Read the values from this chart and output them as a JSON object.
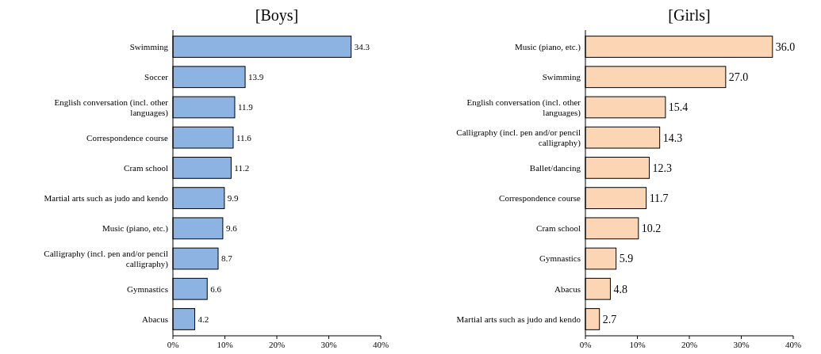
{
  "chart_data": [
    {
      "type": "bar",
      "orientation": "horizontal",
      "title": "[Boys]",
      "categories": [
        "Swimming",
        "Soccer",
        "English conversation (incl. other languages)",
        "Correspondence course",
        "Cram school",
        "Martial arts such as judo and kendo",
        "Music (piano, etc.)",
        "Calligraphy (incl. pen and/or pencil calligraphy)",
        "Gymnastics",
        "Abacus"
      ],
      "values": [
        34.3,
        13.9,
        11.9,
        11.6,
        11.2,
        9.9,
        9.6,
        8.7,
        6.6,
        4.2
      ],
      "color": "#8db3e2",
      "data_labels": true,
      "xlim": [
        0,
        40
      ],
      "xticks": [
        {
          "value": 0,
          "label": "0%"
        },
        {
          "value": 10,
          "label": "10%"
        },
        {
          "value": 20,
          "label": "20%"
        },
        {
          "value": 30,
          "label": "30%"
        },
        {
          "value": 40,
          "label": "40%"
        }
      ]
    },
    {
      "type": "bar",
      "orientation": "horizontal",
      "title": "[Girls]",
      "categories": [
        "Music (piano, etc.)",
        "Swimming",
        "English conversation (incl. other languages)",
        "Calligraphy (incl. pen and/or pencil calligraphy)",
        "Ballet/dancing",
        "Correspondence course",
        "Cram school",
        "Gymnastics",
        "Abacus",
        "Martial arts such as judo and kendo"
      ],
      "values": [
        36.0,
        27.0,
        15.4,
        14.3,
        12.3,
        11.7,
        10.2,
        5.9,
        4.8,
        2.7
      ],
      "value_labels": [
        "36.0",
        "27.0",
        "15.4",
        "14.3",
        "12.3",
        "11.7",
        "10.2",
        "5.9",
        "4.8",
        "2.7"
      ],
      "color": "#fcd5b4",
      "xlim": [
        0,
        40
      ],
      "xticks": [
        {
          "value": 0,
          "label": "0%"
        },
        {
          "value": 10,
          "label": "10%"
        },
        {
          "value": 20,
          "label": "20%"
        },
        {
          "value": 30,
          "label": "30%"
        },
        {
          "value": 40,
          "label": "40%"
        }
      ]
    }
  ]
}
